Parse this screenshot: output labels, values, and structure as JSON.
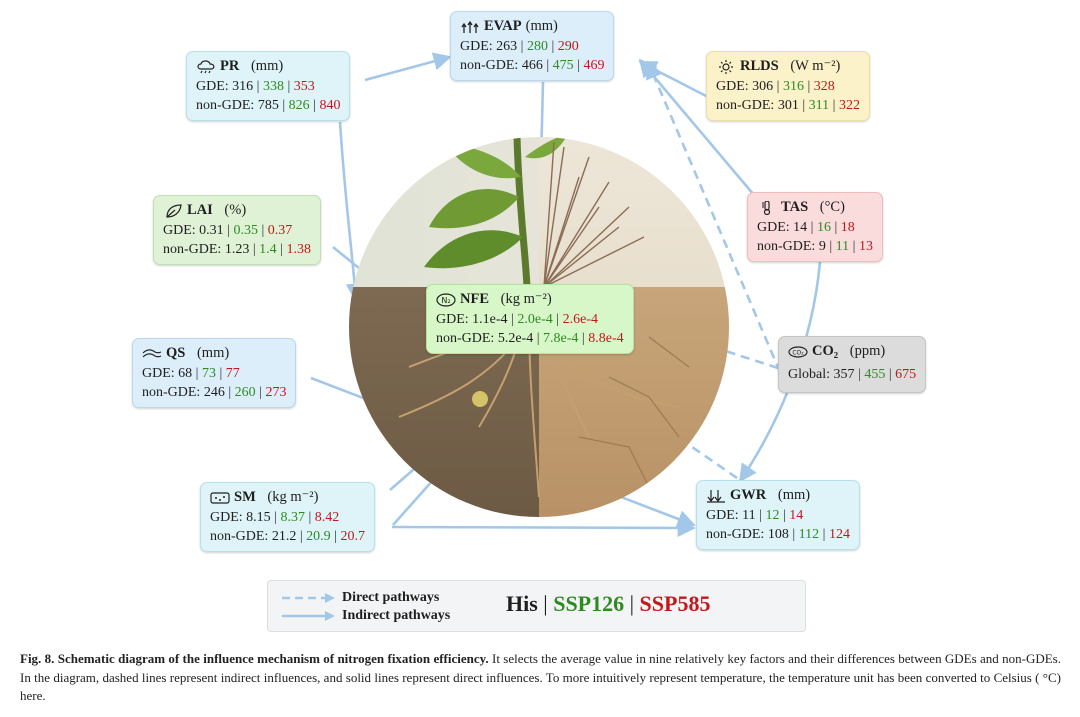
{
  "colors": {
    "ssp126": "#2e8b22",
    "ssp585": "#c4171b",
    "arrow": "#a3c7e8"
  },
  "evap": {
    "name": "EVAP",
    "unit": "(mm)",
    "row1_label": "GDE: ",
    "row1": [
      "263",
      "280",
      "290"
    ],
    "row2_label": "non-GDE: ",
    "row2": [
      "466",
      "475",
      "469"
    ]
  },
  "pr": {
    "name": "PR",
    "unit": "(mm)",
    "row1_label": "GDE: ",
    "row1": [
      "316",
      "338",
      "353"
    ],
    "row2_label": "non-GDE: ",
    "row2": [
      "785",
      "826",
      "840"
    ]
  },
  "rlds": {
    "name": "RLDS",
    "unit": "(W m⁻²)",
    "row1_label": "GDE: ",
    "row1": [
      "306",
      "316",
      "328"
    ],
    "row2_label": "non-GDE: ",
    "row2": [
      "301",
      "311",
      "322"
    ]
  },
  "tas": {
    "name": "TAS",
    "unit": "(°C)",
    "row1_label": "GDE: ",
    "row1": [
      "14",
      "16",
      "18"
    ],
    "row2_label": "non-GDE: ",
    "row2": [
      "9",
      "11",
      "13"
    ]
  },
  "lai": {
    "name": "LAI",
    "unit": "(%)",
    "row1_label": "GDE: ",
    "row1": [
      "0.31",
      "0.35",
      "0.37"
    ],
    "row2_label": "non-GDE: ",
    "row2": [
      "1.23",
      "1.4",
      "1.38"
    ]
  },
  "nfe": {
    "name": "NFE",
    "unit": "(kg m⁻²)",
    "row1_label": "GDE: ",
    "row1": [
      "1.1e-4",
      "2.0e-4",
      "2.6e-4"
    ],
    "row2_label": "non-GDE: ",
    "row2": [
      "5.2e-4",
      "7.8e-4",
      "8.8e-4"
    ]
  },
  "co2": {
    "name": "CO₂",
    "unit": "(ppm)",
    "row1_label": "Global: ",
    "row1": [
      "357",
      "455",
      "675"
    ]
  },
  "qs": {
    "name": "QS",
    "unit": "(mm)",
    "row1_label": "GDE: ",
    "row1": [
      "68",
      "73",
      "77"
    ],
    "row2_label": "non-GDE: ",
    "row2": [
      "246",
      "260",
      "273"
    ]
  },
  "sm": {
    "name": "SM",
    "unit": "(kg m⁻²)",
    "row1_label": "GDE: ",
    "row1": [
      "8.15",
      "8.37",
      "8.42"
    ],
    "row2_label": "non-GDE: ",
    "row2": [
      "21.2",
      "20.9",
      "20.7"
    ]
  },
  "gwr": {
    "name": "GWR",
    "unit": "(mm)",
    "row1_label": "GDE: ",
    "row1": [
      "11",
      "12",
      "14"
    ],
    "row2_label": "non-GDE: ",
    "row2": [
      "108",
      "112",
      "124"
    ]
  },
  "legend": {
    "direct": "Direct pathways",
    "indirect": "Indirect pathways",
    "his": "His",
    "ssp126": "SSP126",
    "ssp585": "SSP585",
    "separator": "|"
  },
  "caption": {
    "label": "Fig. 8. Schematic diagram of the influence mechanism of nitrogen fixation efficiency.",
    "text": " It selects the average value in nine relatively key factors and their differences between GDEs and non-GDEs. In the diagram, dashed lines represent indirect influences, and solid lines represent direct influences. To more intuitively represent temperature, the temperature unit has been converted to Celsius ( °C) here."
  }
}
